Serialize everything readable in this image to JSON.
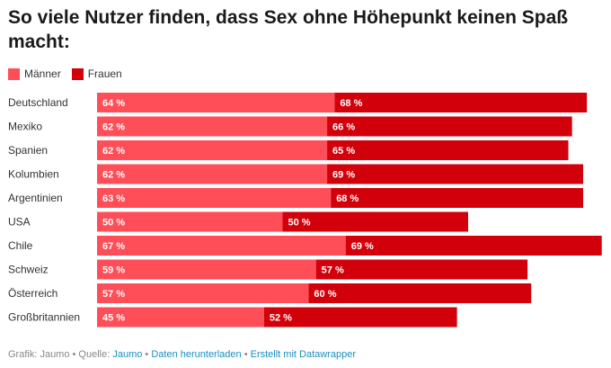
{
  "title": "So viele Nutzer finden, dass Sex ohne Höhepunkt keinen Spaß macht:",
  "colors": {
    "maenner": "#ff4e57",
    "frauen": "#d2000b"
  },
  "chart_data": {
    "type": "bar",
    "stacked": true,
    "orientation": "horizontal",
    "title": "So viele Nutzer finden, dass Sex ohne Höhepunkt keinen Spaß macht:",
    "categories": [
      "Deutschland",
      "Mexiko",
      "Spanien",
      "Kolumbien",
      "Argentinien",
      "USA",
      "Chile",
      "Schweiz",
      "Österreich",
      "Großbritannien"
    ],
    "series": [
      {
        "name": "Männer",
        "values": [
          64,
          62,
          62,
          62,
          63,
          50,
          67,
          59,
          57,
          45
        ]
      },
      {
        "name": "Frauen",
        "values": [
          68,
          66,
          65,
          69,
          68,
          50,
          69,
          57,
          60,
          52
        ]
      }
    ],
    "value_suffix": " %",
    "legend_position": "top-left",
    "grid": false
  },
  "footer": {
    "prefix": "Grafik: Jaumo • Quelle: ",
    "source_link": "Jaumo",
    "sep1": " • ",
    "download_link": "Daten herunterladen",
    "sep2": " • ",
    "created_link": "Erstellt mit Datawrapper"
  }
}
